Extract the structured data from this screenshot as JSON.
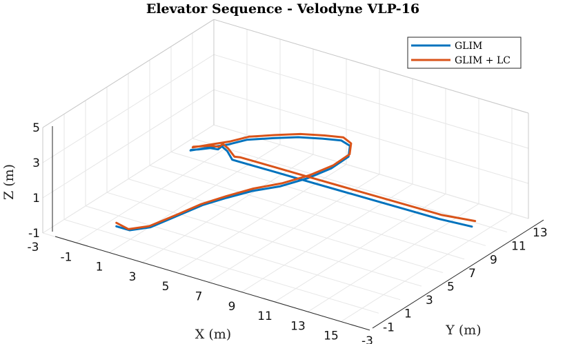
{
  "chart_data": {
    "type": "line",
    "title": "Elevator Sequence - Velodyne VLP-16",
    "xlabel": "X (m)",
    "ylabel": "Y (m)",
    "zlabel": "Z (m)",
    "xlim": [
      -3,
      16
    ],
    "ylim": [
      -3,
      13
    ],
    "zlim": [
      -1,
      5
    ],
    "x_ticks": [
      "-3",
      "-1",
      "1",
      "3",
      "5",
      "7",
      "9",
      "11",
      "13",
      "15"
    ],
    "y_ticks": [
      "-3",
      "-1",
      "1",
      "3",
      "5",
      "7",
      "9",
      "11",
      "13"
    ],
    "z_ticks": [
      "-1",
      "1",
      "3",
      "5"
    ],
    "grid": true,
    "legend_position": "top-right",
    "series": [
      {
        "name": "GLIM",
        "color": "#0072BD",
        "x": [
          -0.3,
          0.5,
          1.5,
          2.7,
          3.8,
          5.0,
          6.3,
          7.7,
          9.0,
          9.9,
          10.3,
          10.0,
          9.4,
          8.4,
          7.2,
          6.0,
          4.8,
          4.0,
          3.2,
          2.7,
          2.5,
          2.6,
          3.0,
          3.5,
          3.9,
          4.2,
          4.4,
          4.7,
          5.0,
          6.3,
          7.7,
          9.0,
          10.3,
          11.6,
          12.9,
          14.2
        ],
        "y": [
          -0.3,
          -0.3,
          0.1,
          1.0,
          1.4,
          1.8,
          2.2,
          2.6,
          3.2,
          4.0,
          5.0,
          5.6,
          5.7,
          5.5,
          5.1,
          4.6,
          4.0,
          3.5,
          3.0,
          2.6,
          2.3,
          2.2,
          2.3,
          2.6,
          2.7,
          2.6,
          2.8,
          2.8,
          2.8,
          3.9,
          5.0,
          6.1,
          7.2,
          8.3,
          9.4,
          10.5
        ],
        "z": [
          -0.9,
          -0.9,
          -0.6,
          0.1,
          0.8,
          1.4,
          2.0,
          2.5,
          3.1,
          3.6,
          4.0,
          4.3,
          4.4,
          4.3,
          4.2,
          4.0,
          3.8,
          3.5,
          3.3,
          3.2,
          3.2,
          3.3,
          3.4,
          3.5,
          3.5,
          3.8,
          3.5,
          3.1,
          3.1,
          2.5,
          1.9,
          1.3,
          0.7,
          0.1,
          -0.5,
          -1.0
        ]
      },
      {
        "name": "GLIM + LC",
        "color": "#D95319",
        "x": [
          -0.3,
          0.5,
          1.5,
          2.7,
          3.8,
          5.0,
          6.3,
          7.7,
          9.0,
          9.9,
          10.3,
          10.0,
          9.4,
          8.4,
          7.2,
          6.0,
          4.8,
          4.0,
          3.2,
          2.7,
          2.5,
          2.6,
          3.0,
          3.5,
          3.9,
          4.2,
          4.4,
          4.7,
          5.0,
          6.3,
          7.7,
          9.0,
          10.3,
          11.6,
          12.9,
          14.2
        ],
        "y": [
          -0.3,
          -0.4,
          0.0,
          0.8,
          1.3,
          1.8,
          2.3,
          2.8,
          3.4,
          4.2,
          5.1,
          5.7,
          5.9,
          5.7,
          5.3,
          4.8,
          4.2,
          3.7,
          3.2,
          2.8,
          2.5,
          2.4,
          2.5,
          2.7,
          2.8,
          2.7,
          2.9,
          3.0,
          3.1,
          4.2,
          5.3,
          6.4,
          7.5,
          8.6,
          9.7,
          10.8
        ],
        "z": [
          -0.7,
          -0.8,
          -0.5,
          0.2,
          0.9,
          1.5,
          2.1,
          2.6,
          3.2,
          3.7,
          4.1,
          4.4,
          4.5,
          4.4,
          4.3,
          4.1,
          3.9,
          3.6,
          3.4,
          3.3,
          3.3,
          3.4,
          3.5,
          3.6,
          3.6,
          3.9,
          3.6,
          3.2,
          3.2,
          2.6,
          2.0,
          1.4,
          0.8,
          0.2,
          -0.4,
          -0.8
        ]
      }
    ]
  }
}
